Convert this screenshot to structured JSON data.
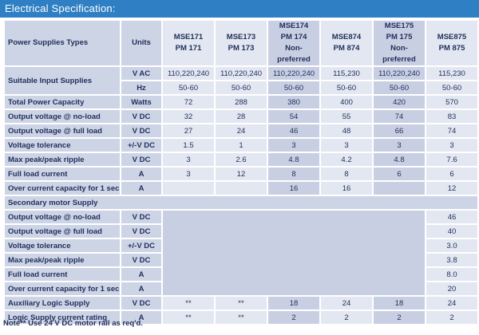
{
  "title": "Electrical Specification:",
  "header": {
    "row_label": "Power Supplies Types",
    "units_label": "Units",
    "models": [
      [
        "MSE171",
        "PM 171"
      ],
      [
        "MSE173",
        "PM 173"
      ],
      [
        "MSE174",
        "PM 174",
        "Non-",
        "preferred"
      ],
      [
        "MSE874",
        "PM 874"
      ],
      [
        "MSE175",
        "PM 175",
        "Non-",
        "preferred"
      ],
      [
        "MSE875",
        "PM 875"
      ]
    ]
  },
  "input_supplies": {
    "label": "Suitable Input Supplies",
    "vac_unit": "V AC",
    "vac": [
      "110,220,240",
      "110,220,240",
      "110,220,240",
      "115,230",
      "110,220,240",
      "115,230"
    ],
    "hz_unit": "Hz",
    "hz": [
      "50-60",
      "50-60",
      "50-60",
      "50-60",
      "50-60",
      "50-60"
    ]
  },
  "main_rows": [
    {
      "label": "Total Power Capacity",
      "unit": "Watts",
      "values": [
        "72",
        "288",
        "380",
        "400",
        "420",
        "570"
      ]
    },
    {
      "label": "Output voltage @ no-load",
      "unit": "V DC",
      "values": [
        "32",
        "28",
        "54",
        "55",
        "74",
        "83"
      ]
    },
    {
      "label": "Output voltage @ full load",
      "unit": "V DC",
      "values": [
        "27",
        "24",
        "46",
        "48",
        "66",
        "74"
      ]
    },
    {
      "label": "Voltage tolerance",
      "unit": "+/-V DC",
      "values": [
        "1.5",
        "1",
        "3",
        "3",
        "3",
        "3"
      ]
    },
    {
      "label": "Max peak/peak ripple",
      "unit": "V DC",
      "values": [
        "3",
        "2.6",
        "4.8",
        "4.2",
        "4.8",
        "7.6"
      ]
    },
    {
      "label": "Full load current",
      "unit": "A",
      "values": [
        "3",
        "12",
        "8",
        "8",
        "6",
        "6"
      ]
    },
    {
      "label": "Over current capacity for 1 sec",
      "unit": "A",
      "values": [
        "",
        "",
        "16",
        "16",
        "",
        "12"
      ]
    }
  ],
  "secondary": {
    "label": "Secondary motor Supply",
    "rows": [
      {
        "label": "Output voltage @ no-load",
        "unit": "V DC",
        "value": "46"
      },
      {
        "label": "Output voltage @ full load",
        "unit": "V DC",
        "value": "40"
      },
      {
        "label": "Voltage tolerance",
        "unit": "+/-V DC",
        "value": "3.0"
      },
      {
        "label": "Max peak/peak ripple",
        "unit": "V DC",
        "value": "3.8"
      },
      {
        "label": "Full load current",
        "unit": "A",
        "value": "8.0"
      },
      {
        "label": "Over current capacity for 1 sec",
        "unit": "A",
        "value": "20"
      }
    ]
  },
  "logic_rows": [
    {
      "label": "Auxiliary Logic Supply",
      "unit": "V DC",
      "values": [
        "**",
        "**",
        "18",
        "24",
        "18",
        "24"
      ]
    },
    {
      "label": "Logic Supply current rating",
      "unit": "A",
      "values": [
        "**",
        "**",
        "2",
        "2",
        "2",
        "2"
      ]
    }
  ],
  "note": "Note** Use 24 V DC motor rail as req'd."
}
